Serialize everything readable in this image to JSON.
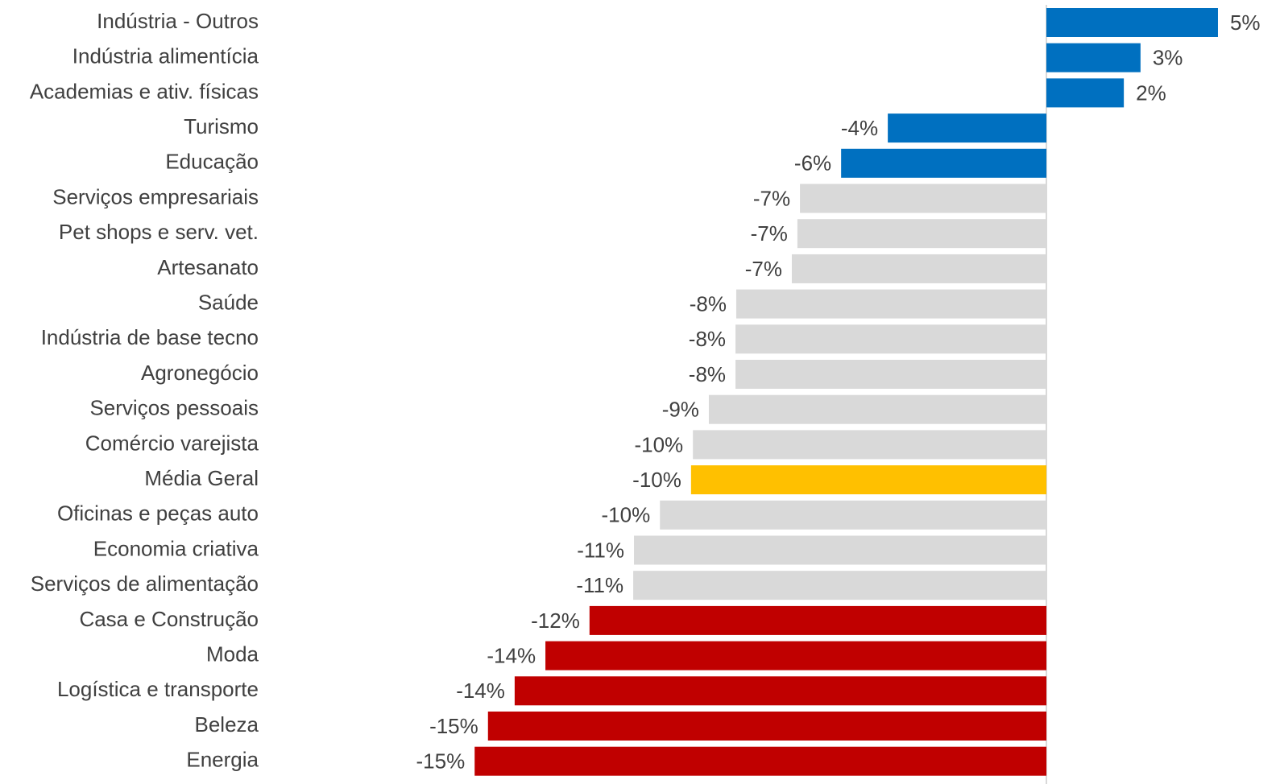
{
  "chart_data": {
    "type": "barh",
    "categories": [
      "Indústria - Outros",
      "Indústria alimentícia",
      "Academias e ativ. físicas",
      "Turismo",
      "Educação",
      "Serviços empresariais",
      "Pet shops e serv. vet.",
      "Artesanato",
      "Saúde",
      "Indústria de base tecno",
      "Agronegócio",
      "Serviços pessoais",
      "Comércio varejista",
      "Média Geral",
      "Oficinas e peças auto",
      "Economia criativa",
      "Serviços de alimentação",
      "Casa e Construção",
      "Moda",
      "Logística e transporte",
      "Beleza",
      "Energia"
    ],
    "values": [
      4.63,
      2.54,
      2.09,
      -4.28,
      -5.54,
      -6.65,
      -6.72,
      -6.87,
      -8.37,
      -8.39,
      -8.39,
      -9.11,
      -9.54,
      -9.59,
      -10.43,
      -11.13,
      -11.15,
      -12.33,
      -13.52,
      -14.35,
      -15.07,
      -15.43
    ],
    "value_labels": [
      "5%",
      "3%",
      "2%",
      "-4%",
      "-6%",
      "-7%",
      "-7%",
      "-7%",
      "-8%",
      "-8%",
      "-8%",
      "-9%",
      "-10%",
      "-10%",
      "-10%",
      "-11%",
      "-11%",
      "-12%",
      "-14%",
      "-14%",
      "-15%",
      "-15%"
    ],
    "colors": [
      "#0070c0",
      "#0070c0",
      "#0070c0",
      "#0070c0",
      "#0070c0",
      "#d9d9d9",
      "#d9d9d9",
      "#d9d9d9",
      "#d9d9d9",
      "#d9d9d9",
      "#d9d9d9",
      "#d9d9d9",
      "#d9d9d9",
      "#ffc000",
      "#d9d9d9",
      "#d9d9d9",
      "#d9d9d9",
      "#c00000",
      "#c00000",
      "#c00000",
      "#c00000",
      "#c00000"
    ],
    "xlim": [
      -16,
      6
    ]
  }
}
